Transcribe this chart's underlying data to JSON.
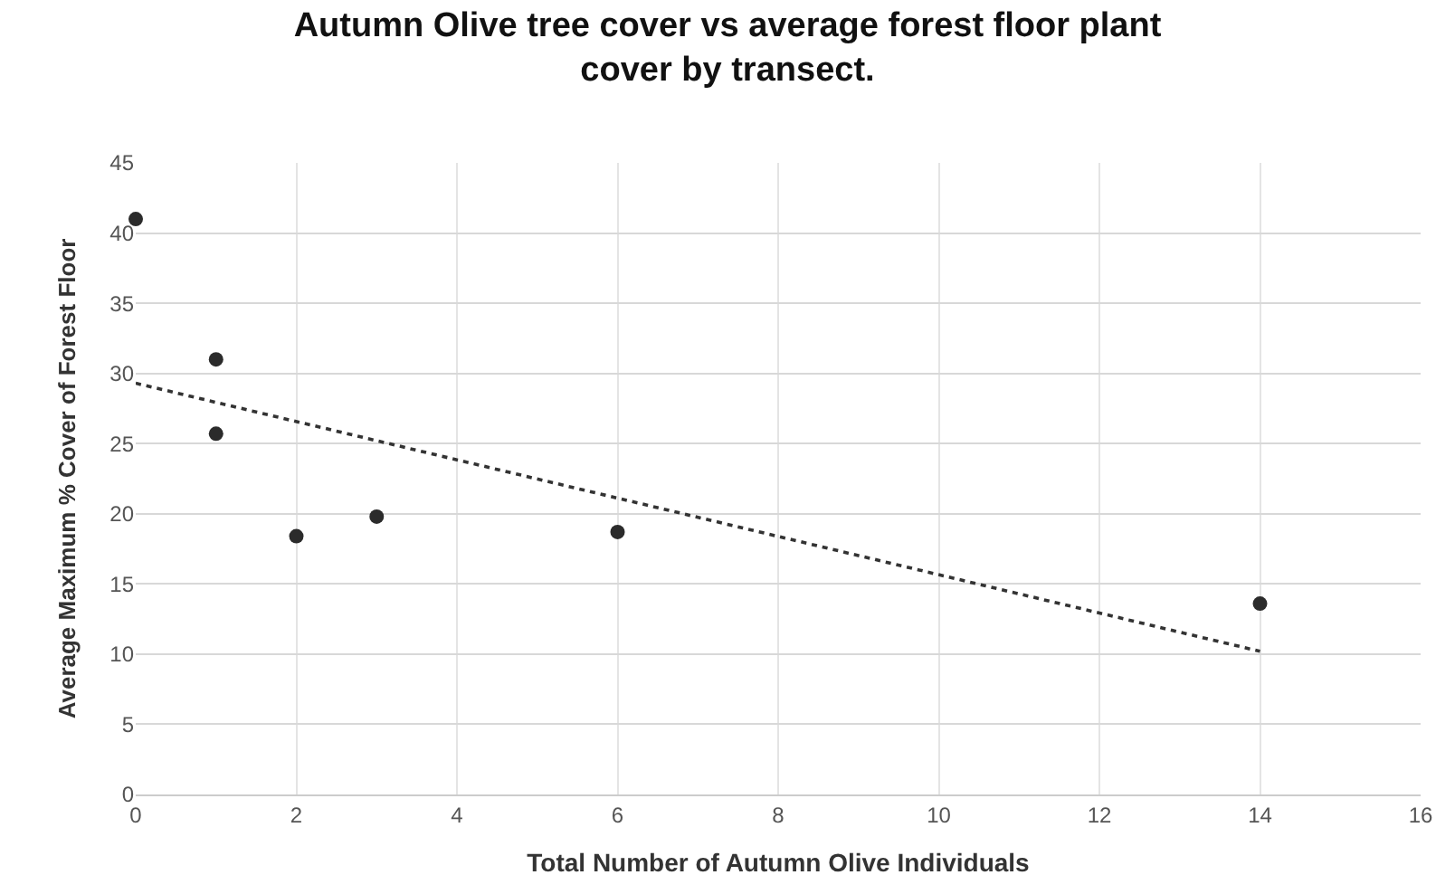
{
  "chart_data": {
    "type": "scatter",
    "title": "Autumn Olive tree cover vs average forest floor plant cover by transect.",
    "xlabel": "Total Number of Autumn Olive Individuals",
    "ylabel": "Average Maximum % Cover of Forest Floor",
    "series": [
      {
        "color": "#2b2b2b",
        "x": [
          0,
          1,
          1,
          2,
          3,
          6,
          14
        ],
        "values": [
          41,
          31,
          25.7,
          18.4,
          19.8,
          18.7,
          13.6
        ],
        "marker": "circle"
      },
      {
        "type": "line",
        "color": "#333333",
        "x": [
          0,
          14
        ],
        "values": [
          29.3,
          10.2
        ],
        "line_style": "dotted"
      }
    ],
    "xlim": [
      0,
      16
    ],
    "xticks": [
      0,
      2,
      4,
      6,
      8,
      10,
      12,
      14,
      16
    ],
    "ylim": [
      0,
      45
    ],
    "yticks": [
      0,
      5,
      10,
      15,
      20,
      25,
      30,
      35,
      40,
      45
    ],
    "grid": true,
    "legend": false
  }
}
